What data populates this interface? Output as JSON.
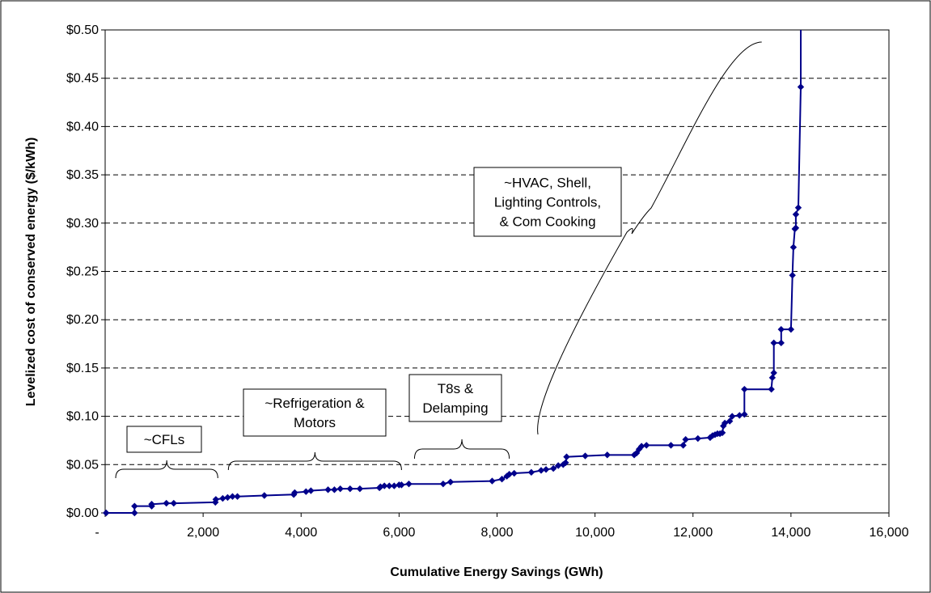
{
  "chart_data": {
    "type": "line",
    "xlabel": "Cumulative Energy Savings (GWh)",
    "ylabel": "Levelized cost of conserved energy ($/kWh)",
    "xlim": [
      0,
      16000
    ],
    "ylim": [
      0,
      0.5
    ],
    "x_ticks": [
      0,
      2000,
      4000,
      6000,
      8000,
      10000,
      12000,
      14000,
      16000
    ],
    "x_tick_labels": [
      "-",
      "2,000",
      "4,000",
      "6,000",
      "8,000",
      "10,000",
      "12,000",
      "14,000",
      "16,000"
    ],
    "y_ticks": [
      0,
      0.05,
      0.1,
      0.15,
      0.2,
      0.25,
      0.3,
      0.35,
      0.4,
      0.45,
      0.5
    ],
    "y_tick_labels": [
      "$0.00",
      "$0.05",
      "$0.10",
      "$0.15",
      "$0.20",
      "$0.25",
      "$0.30",
      "$0.35",
      "$0.40",
      "$0.45",
      "$0.50"
    ],
    "grid": "horizontal dashed",
    "line_color": "#00008B",
    "series": [
      {
        "points": [
          [
            20,
            0.0
          ],
          [
            600,
            0.0
          ],
          [
            600,
            0.007
          ],
          [
            950,
            0.007
          ],
          [
            950,
            0.009
          ],
          [
            1250,
            0.01
          ],
          [
            1400,
            0.01
          ],
          [
            2250,
            0.011
          ],
          [
            2260,
            0.014
          ],
          [
            2400,
            0.015
          ],
          [
            2500,
            0.016
          ],
          [
            2600,
            0.017
          ],
          [
            2700,
            0.017
          ],
          [
            3250,
            0.018
          ],
          [
            3850,
            0.019
          ],
          [
            3870,
            0.021
          ],
          [
            4100,
            0.022
          ],
          [
            4200,
            0.023
          ],
          [
            4550,
            0.024
          ],
          [
            4680,
            0.024
          ],
          [
            4800,
            0.025
          ],
          [
            5000,
            0.025
          ],
          [
            5200,
            0.025
          ],
          [
            5600,
            0.026
          ],
          [
            5620,
            0.027
          ],
          [
            5700,
            0.028
          ],
          [
            5800,
            0.028
          ],
          [
            5900,
            0.028
          ],
          [
            6000,
            0.029
          ],
          [
            6050,
            0.029
          ],
          [
            6200,
            0.03
          ],
          [
            6900,
            0.03
          ],
          [
            7050,
            0.032
          ],
          [
            7900,
            0.033
          ],
          [
            8100,
            0.035
          ],
          [
            8200,
            0.038
          ],
          [
            8250,
            0.04
          ],
          [
            8350,
            0.041
          ],
          [
            8700,
            0.042
          ],
          [
            8900,
            0.044
          ],
          [
            9000,
            0.045
          ],
          [
            9150,
            0.046
          ],
          [
            9250,
            0.049
          ],
          [
            9350,
            0.05
          ],
          [
            9400,
            0.052
          ],
          [
            9420,
            0.058
          ],
          [
            9800,
            0.059
          ],
          [
            10250,
            0.06
          ],
          [
            10800,
            0.06
          ],
          [
            10850,
            0.062
          ],
          [
            10900,
            0.066
          ],
          [
            10950,
            0.069
          ],
          [
            11050,
            0.07
          ],
          [
            11550,
            0.07
          ],
          [
            11800,
            0.07
          ],
          [
            11850,
            0.076
          ],
          [
            12100,
            0.077
          ],
          [
            12350,
            0.078
          ],
          [
            12400,
            0.08
          ],
          [
            12450,
            0.081
          ],
          [
            12500,
            0.082
          ],
          [
            12550,
            0.082
          ],
          [
            12600,
            0.083
          ],
          [
            12620,
            0.09
          ],
          [
            12650,
            0.093
          ],
          [
            12750,
            0.095
          ],
          [
            12800,
            0.1
          ],
          [
            12950,
            0.101
          ],
          [
            13050,
            0.102
          ],
          [
            13050,
            0.128
          ],
          [
            13600,
            0.128
          ],
          [
            13620,
            0.14
          ],
          [
            13650,
            0.145
          ],
          [
            13650,
            0.176
          ],
          [
            13800,
            0.176
          ],
          [
            13800,
            0.19
          ],
          [
            14000,
            0.19
          ],
          [
            14030,
            0.246
          ],
          [
            14050,
            0.275
          ],
          [
            14080,
            0.294
          ],
          [
            14100,
            0.295
          ],
          [
            14100,
            0.309
          ],
          [
            14150,
            0.316
          ],
          [
            14200,
            0.441
          ],
          [
            14200,
            0.5
          ]
        ]
      }
    ],
    "annotations": [
      {
        "text_lines": [
          "~CFLs"
        ],
        "brace": [
          50,
          2300
        ]
      },
      {
        "text_lines": [
          "~Refrigeration &",
          "Motors"
        ],
        "brace": [
          2350,
          6050
        ]
      },
      {
        "text_lines": [
          "T8s &",
          "Delamping"
        ],
        "brace": [
          6150,
          8250
        ]
      },
      {
        "text_lines": [
          "~HVAC, Shell,",
          "Lighting Controls,",
          "& Com Cooking"
        ],
        "brace": [
          9000,
          13700
        ]
      }
    ]
  }
}
